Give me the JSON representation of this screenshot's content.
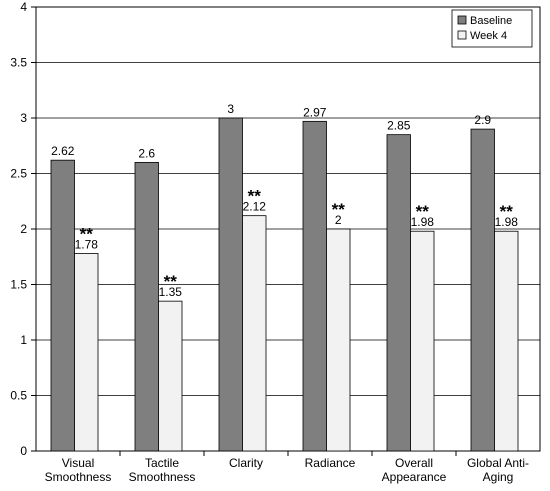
{
  "chart_data": {
    "type": "bar",
    "categories": [
      [
        "Visual",
        "Smoothness"
      ],
      [
        "Tactile",
        "Smoothness"
      ],
      [
        "Clarity"
      ],
      [
        "Radiance"
      ],
      [
        "Overall",
        "Appearance"
      ],
      [
        "Global Anti-",
        "Aging"
      ]
    ],
    "series": [
      {
        "name": "Baseline",
        "color": "#7f7f7f",
        "values": [
          2.62,
          2.6,
          3,
          2.97,
          2.85,
          2.9
        ],
        "labels": [
          "2.62",
          "2.6",
          "3",
          "2.97",
          "2.85",
          "2.9"
        ]
      },
      {
        "name": "Week 4",
        "color": "#f2f2f2",
        "values": [
          1.78,
          1.35,
          2.12,
          2,
          1.98,
          1.98
        ],
        "labels": [
          "1.78",
          "1.35",
          "2.12",
          "2",
          "1.98",
          "1.98"
        ]
      }
    ],
    "annotations": [
      "**",
      "**",
      "**",
      "**",
      "**",
      "**"
    ],
    "ylim": [
      0,
      4
    ],
    "yticks": [
      "0",
      "0.5",
      "1",
      "1.5",
      "2",
      "2.5",
      "3",
      "3.5",
      "4"
    ],
    "grid": true,
    "legend_position": "top-right"
  }
}
